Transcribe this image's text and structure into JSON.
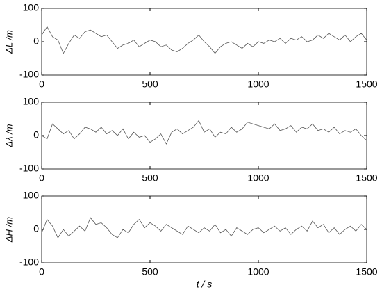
{
  "chart_data": [
    {
      "type": "line",
      "y_label": "ΔL /m",
      "color": "#555555",
      "xlim": [
        0,
        1500
      ],
      "ylim": [
        -100,
        100
      ],
      "xticks": [
        0,
        500,
        1000,
        1500
      ],
      "yticks": [
        -100,
        0,
        100
      ],
      "x": [
        0,
        25,
        50,
        75,
        100,
        125,
        150,
        175,
        200,
        225,
        250,
        275,
        300,
        325,
        350,
        375,
        400,
        425,
        450,
        475,
        500,
        525,
        550,
        575,
        600,
        625,
        650,
        675,
        700,
        725,
        750,
        775,
        800,
        825,
        850,
        875,
        900,
        925,
        950,
        975,
        1000,
        1025,
        1050,
        1075,
        1100,
        1125,
        1150,
        1175,
        1200,
        1225,
        1250,
        1275,
        1300,
        1325,
        1350,
        1375,
        1400,
        1425,
        1450,
        1475,
        1500
      ],
      "values": [
        20,
        45,
        15,
        5,
        -35,
        -5,
        20,
        10,
        30,
        35,
        25,
        15,
        20,
        0,
        -20,
        -10,
        -5,
        5,
        -15,
        -5,
        5,
        0,
        -15,
        -10,
        -25,
        -30,
        -20,
        -5,
        5,
        20,
        0,
        -15,
        -35,
        -15,
        -5,
        0,
        -10,
        -20,
        -5,
        -15,
        0,
        -5,
        5,
        0,
        10,
        -5,
        10,
        5,
        15,
        0,
        5,
        20,
        10,
        25,
        15,
        5,
        20,
        0,
        15,
        25,
        5
      ]
    },
    {
      "type": "line",
      "y_label": "Δλ /m",
      "color": "#555555",
      "xlim": [
        0,
        1500
      ],
      "ylim": [
        -100,
        100
      ],
      "xticks": [
        0,
        500,
        1000,
        1500
      ],
      "yticks": [
        -100,
        0,
        100
      ],
      "x": [
        0,
        25,
        50,
        75,
        100,
        125,
        150,
        175,
        200,
        225,
        250,
        275,
        300,
        325,
        350,
        375,
        400,
        425,
        450,
        475,
        500,
        525,
        550,
        575,
        600,
        625,
        650,
        675,
        700,
        725,
        750,
        775,
        800,
        825,
        850,
        875,
        900,
        925,
        950,
        975,
        1000,
        1025,
        1050,
        1075,
        1100,
        1125,
        1150,
        1175,
        1200,
        1225,
        1250,
        1275,
        1300,
        1325,
        1350,
        1375,
        1400,
        1425,
        1450,
        1475,
        1500
      ],
      "values": [
        0,
        -10,
        35,
        20,
        5,
        15,
        -10,
        5,
        25,
        20,
        10,
        25,
        5,
        15,
        0,
        20,
        -10,
        10,
        -5,
        0,
        -20,
        -10,
        5,
        -25,
        10,
        20,
        5,
        15,
        25,
        45,
        10,
        20,
        -5,
        10,
        5,
        25,
        10,
        20,
        40,
        35,
        30,
        25,
        20,
        35,
        15,
        20,
        30,
        10,
        25,
        20,
        35,
        15,
        20,
        10,
        25,
        5,
        15,
        10,
        20,
        0,
        -15
      ]
    },
    {
      "type": "line",
      "y_label": "ΔH /m",
      "x_label": "t / s",
      "color": "#555555",
      "xlim": [
        0,
        1500
      ],
      "ylim": [
        -100,
        100
      ],
      "xticks": [
        0,
        500,
        1000,
        1500
      ],
      "yticks": [
        -100,
        0,
        100
      ],
      "x": [
        0,
        25,
        50,
        75,
        100,
        125,
        150,
        175,
        200,
        225,
        250,
        275,
        300,
        325,
        350,
        375,
        400,
        425,
        450,
        475,
        500,
        525,
        550,
        575,
        600,
        625,
        650,
        675,
        700,
        725,
        750,
        775,
        800,
        825,
        850,
        875,
        900,
        925,
        950,
        975,
        1000,
        1025,
        1050,
        1075,
        1100,
        1125,
        1150,
        1175,
        1200,
        1225,
        1250,
        1275,
        1300,
        1325,
        1350,
        1375,
        1400,
        1425,
        1450,
        1475,
        1500
      ],
      "values": [
        -10,
        30,
        10,
        -25,
        0,
        -20,
        -5,
        10,
        -5,
        35,
        15,
        20,
        5,
        -15,
        -25,
        0,
        -10,
        15,
        30,
        5,
        20,
        10,
        -5,
        15,
        5,
        -5,
        -15,
        10,
        0,
        -10,
        5,
        -5,
        15,
        -10,
        0,
        -20,
        5,
        -5,
        -15,
        0,
        5,
        -10,
        0,
        10,
        -5,
        5,
        -15,
        0,
        10,
        -5,
        25,
        5,
        15,
        -10,
        5,
        -15,
        0,
        10,
        -5,
        15,
        0
      ]
    }
  ]
}
